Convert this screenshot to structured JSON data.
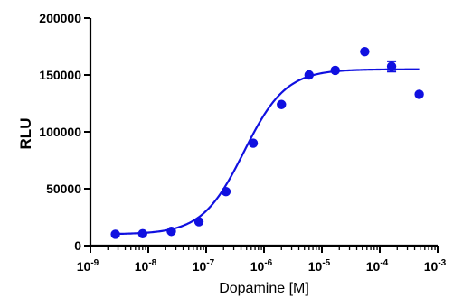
{
  "chart_data": {
    "type": "scatter",
    "title": "",
    "xlabel": "Dopamine [M]",
    "ylabel": "RLU",
    "x_scale": "log",
    "x_range": [
      1e-09,
      0.001
    ],
    "ylim": [
      0,
      200000
    ],
    "x_ticks": [
      {
        "value": 1e-09,
        "base": "10",
        "exp": "-9"
      },
      {
        "value": 1e-08,
        "base": "10",
        "exp": "-8"
      },
      {
        "value": 1e-07,
        "base": "10",
        "exp": "-7"
      },
      {
        "value": 1e-06,
        "base": "10",
        "exp": "-6"
      },
      {
        "value": 1e-05,
        "base": "10",
        "exp": "-5"
      },
      {
        "value": 0.0001,
        "base": "10",
        "exp": "-4"
      },
      {
        "value": 0.001,
        "base": "10",
        "exp": "-3"
      }
    ],
    "y_ticks": [
      {
        "value": 0,
        "label": "0"
      },
      {
        "value": 50000,
        "label": "50000"
      },
      {
        "value": 100000,
        "label": "100000"
      },
      {
        "value": 150000,
        "label": "150000"
      },
      {
        "value": 200000,
        "label": "200000"
      }
    ],
    "grid": false,
    "color": "#1010e0",
    "series": [
      {
        "points": [
          {
            "x": 2.7e-09,
            "y": 10000
          },
          {
            "x": 8e-09,
            "y": 10500
          },
          {
            "x": 2.5e-08,
            "y": 12500
          },
          {
            "x": 7.5e-08,
            "y": 21000
          },
          {
            "x": 2.2e-07,
            "y": 47500
          },
          {
            "x": 6.5e-07,
            "y": 90000
          },
          {
            "x": 2e-06,
            "y": 124000
          },
          {
            "x": 6e-06,
            "y": 150000
          },
          {
            "x": 1.7e-05,
            "y": 154000
          },
          {
            "x": 5.5e-05,
            "y": 170500
          },
          {
            "x": 0.00016,
            "y": 157500,
            "err": 4500
          },
          {
            "x": 0.00048,
            "y": 133000
          }
        ]
      }
    ],
    "fit": {
      "model": "sigmoidal dose-response",
      "bottom": 10000,
      "top": 155000,
      "ec50": 4.5e-07,
      "hill_slope": 1.2,
      "x_from": 2.7e-09,
      "x_to": 0.00048
    }
  }
}
